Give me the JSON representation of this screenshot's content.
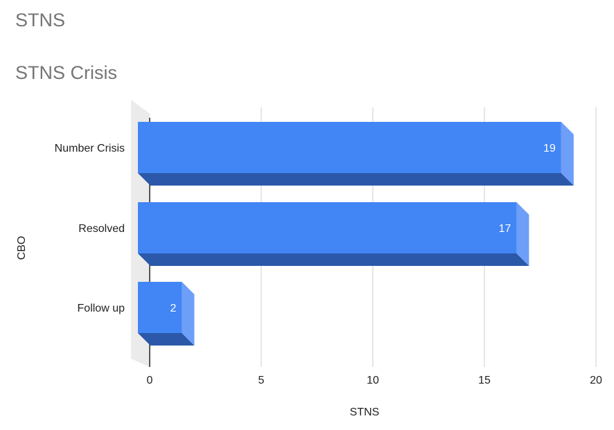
{
  "header": {
    "sheet_title": "STNS"
  },
  "chart_data": {
    "type": "bar",
    "orientation": "horizontal",
    "style": "3d",
    "title": "STNS Crisis",
    "xlabel": "STNS",
    "ylabel": "CBO",
    "categories": [
      "Number Crisis",
      "Resolved",
      "Follow up"
    ],
    "values": [
      19,
      17,
      2
    ],
    "xlim": [
      0,
      20
    ],
    "xticks": [
      0,
      5,
      10,
      15,
      20
    ],
    "grid": true,
    "legend": "none",
    "colors": {
      "bar_face": "#4285f4",
      "bar_side": "#6d9ef8",
      "bar_bottom": "#2b58a8",
      "gridline": "#cccccc",
      "floor": "#ebebeb",
      "axis_line": "#222222"
    }
  }
}
